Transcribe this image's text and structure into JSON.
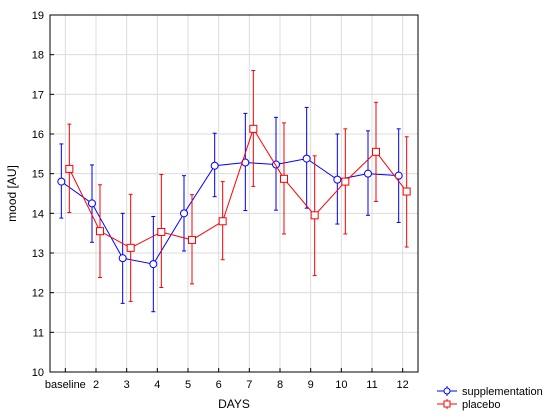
{
  "chart_data": {
    "type": "line",
    "title": "",
    "xlabel": "DAYS",
    "ylabel": "mood [AU]",
    "ylim": [
      10,
      19
    ],
    "yticks": [
      10,
      11,
      12,
      13,
      14,
      15,
      16,
      17,
      18,
      19
    ],
    "grid": true,
    "legend_position": "bottom-right",
    "categories": [
      "baseline",
      "2",
      "3",
      "4",
      "5",
      "6",
      "7",
      "8",
      "9",
      "10",
      "11",
      "12"
    ],
    "series": [
      {
        "name": "supplementation",
        "color": "#0000ff",
        "marker": "circle",
        "values": [
          14.8,
          14.25,
          12.87,
          12.72,
          14.0,
          15.2,
          15.28,
          15.23,
          15.38,
          14.85,
          15.0,
          14.95
        ],
        "err_low": [
          13.88,
          13.27,
          11.73,
          11.52,
          13.05,
          14.42,
          14.07,
          14.08,
          14.13,
          13.73,
          13.95,
          13.77
        ],
        "err_high": [
          15.75,
          15.22,
          14.0,
          13.92,
          14.95,
          16.02,
          16.52,
          16.42,
          16.67,
          16.0,
          16.08,
          16.13
        ]
      },
      {
        "name": "placebo",
        "color": "#ff0000",
        "marker": "square",
        "values": [
          15.12,
          13.55,
          13.13,
          13.53,
          13.33,
          13.8,
          16.13,
          14.87,
          13.95,
          14.8,
          15.55,
          14.55
        ],
        "err_low": [
          14.02,
          12.38,
          11.78,
          12.13,
          12.22,
          12.83,
          14.68,
          13.48,
          12.43,
          13.48,
          14.3,
          13.15
        ],
        "err_high": [
          16.25,
          14.72,
          14.48,
          14.98,
          14.47,
          14.8,
          17.6,
          16.28,
          15.45,
          16.13,
          16.8,
          15.93
        ]
      }
    ]
  }
}
